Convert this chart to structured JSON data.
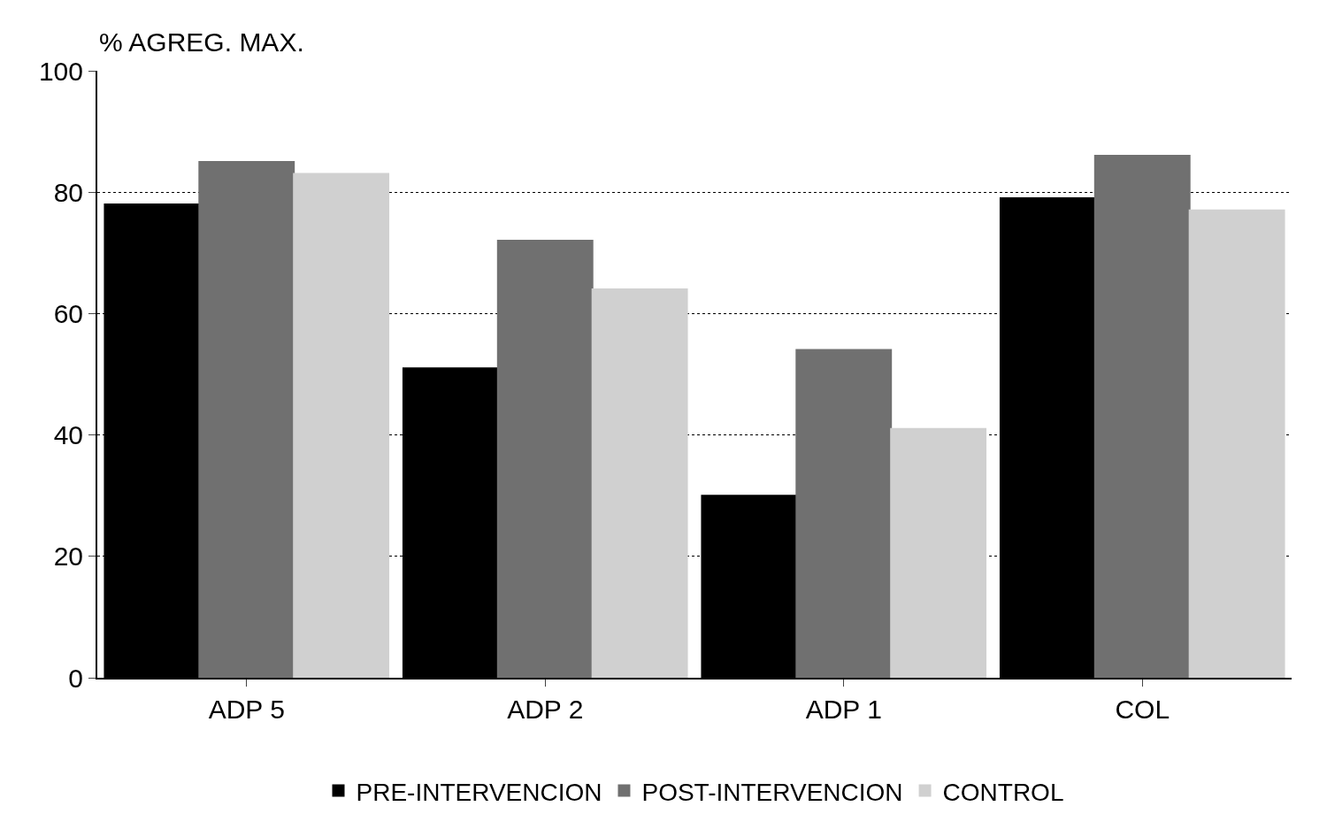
{
  "chart_data": {
    "type": "bar",
    "ylabel": "% AGREG. MAX.",
    "categories": [
      "ADP 5",
      "ADP 2",
      "ADP 1",
      "COL"
    ],
    "series": [
      {
        "name": "PRE-INTERVENCION",
        "color": "#000000",
        "values": [
          78,
          51,
          30,
          79
        ]
      },
      {
        "name": "POST-INTERVENCION",
        "color": "#707070",
        "values": [
          85,
          72,
          54,
          86
        ]
      },
      {
        "name": "CONTROL",
        "color": "#d0d0d0",
        "values": [
          83,
          64,
          41,
          77
        ]
      }
    ],
    "ylim": [
      0,
      100
    ],
    "yticks": [
      0,
      20,
      40,
      60,
      80,
      100
    ],
    "grid": "y",
    "legend": "bottom"
  }
}
